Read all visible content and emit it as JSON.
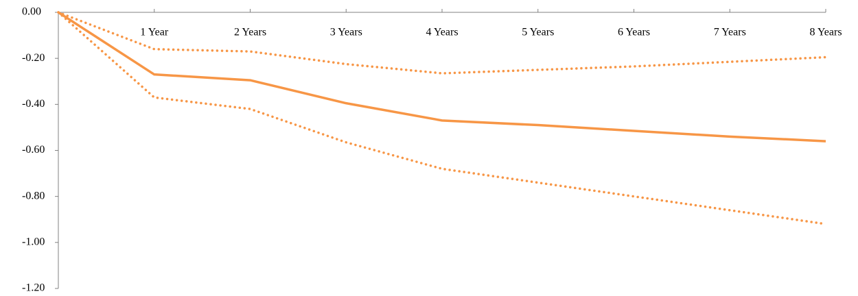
{
  "chart_data": {
    "type": "line",
    "categories": [
      null,
      "1 Year",
      "2 Years",
      "3 Years",
      "4 Years",
      "5 Years",
      "6 Years",
      "7 Years",
      "8 Years"
    ],
    "series": [
      {
        "color": "#f79646",
        "style": "solid",
        "values": [
          0,
          -0.27,
          -0.295,
          -0.395,
          -0.47,
          -0.49,
          -0.515,
          -0.54,
          -0.56
        ]
      },
      {
        "color": "#f79646",
        "style": "dotted",
        "values": [
          0,
          -0.16,
          -0.17,
          -0.225,
          -0.265,
          -0.25,
          -0.235,
          -0.215,
          -0.195
        ]
      },
      {
        "color": "#f79646",
        "style": "dotted",
        "values": [
          0,
          -0.37,
          -0.42,
          -0.565,
          -0.68,
          -0.74,
          -0.8,
          -0.86,
          -0.92
        ]
      }
    ],
    "ylim": [
      -1.2,
      0
    ],
    "yticks": [
      {
        "value": 0,
        "label": "0.00"
      },
      {
        "value": -0.2,
        "label": "-0.20"
      },
      {
        "value": -0.4,
        "label": "-0.40"
      },
      {
        "value": -0.6,
        "label": "-0.60"
      },
      {
        "value": -0.8,
        "label": "-0.80"
      },
      {
        "value": -1,
        "label": "-1.00"
      },
      {
        "value": -1.2,
        "label": "-1.20"
      }
    ]
  }
}
